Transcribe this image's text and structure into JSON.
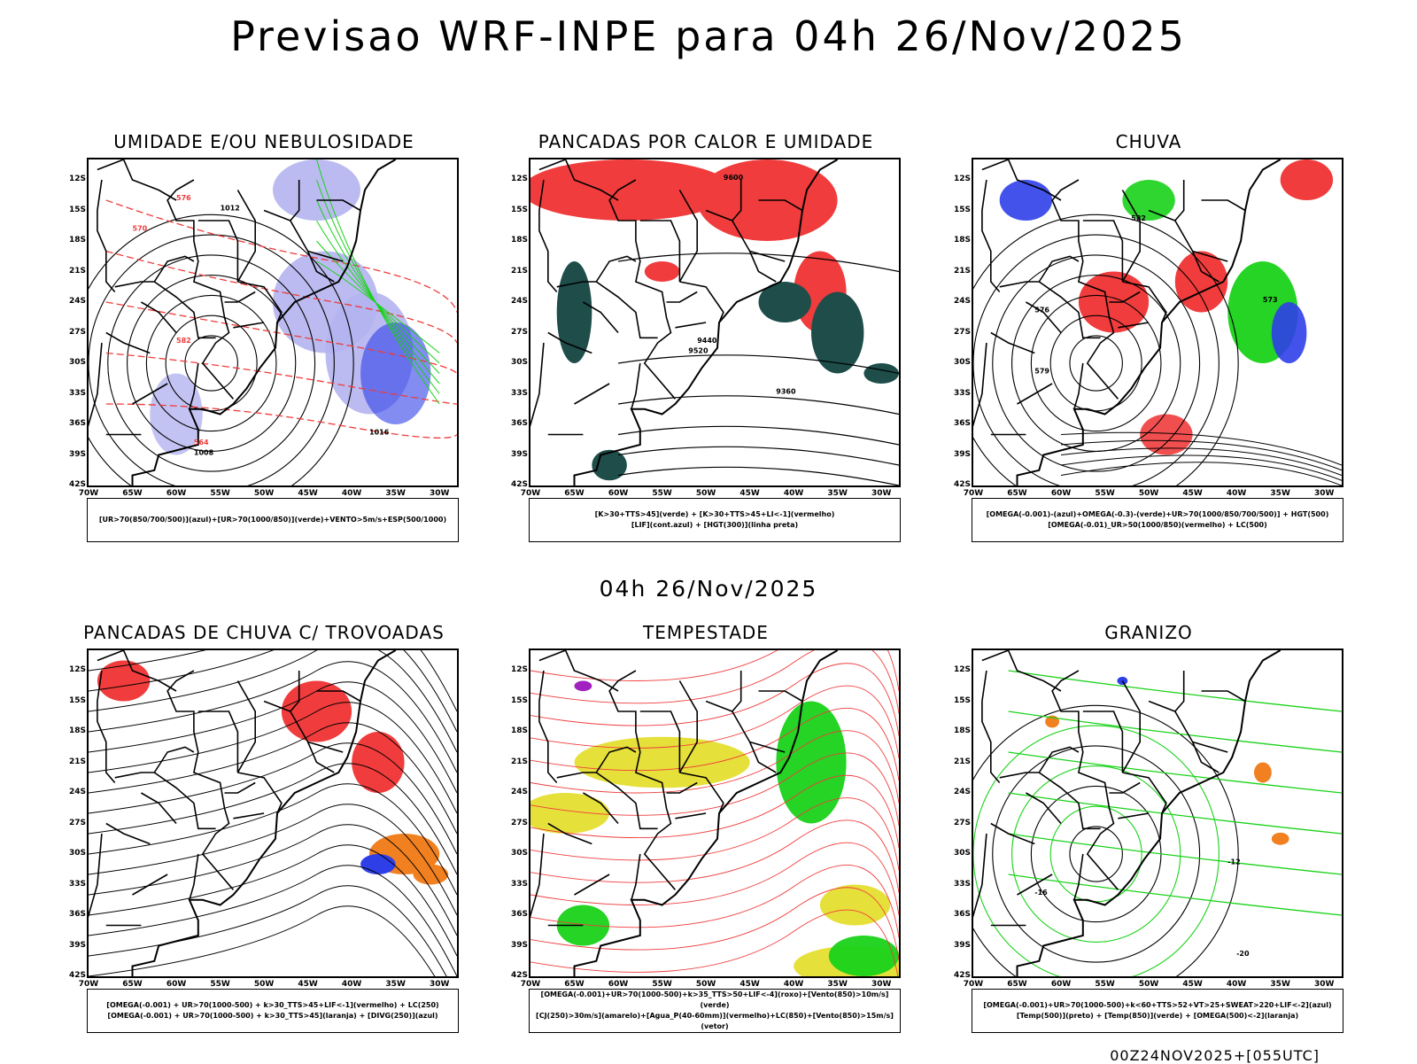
{
  "main_title": "Previsao WRF-INPE  para 04h 26/Nov/2025",
  "mid_title": "04h 26/Nov/2025",
  "footer": "00Z24NOV2025+[055UTC]",
  "lat_labels": [
    "12S",
    "15S",
    "18S",
    "21S",
    "24S",
    "27S",
    "30S",
    "33S",
    "36S",
    "39S",
    "42S"
  ],
  "lon_labels": [
    "70W",
    "65W",
    "60W",
    "55W",
    "50W",
    "45W",
    "40W",
    "35W",
    "30W"
  ],
  "panels": [
    {
      "title": "UMIDADE E/OU NEBULOSIDADE",
      "legend": [
        "[UR>70(850/700/500)](azul)+[UR>70(1000/850)](verde)+VENTO>5m/s+ESP(500/1000)"
      ],
      "contour_labels": [
        "1012",
        "1008",
        "1016",
        "576",
        "570",
        "564",
        "582"
      ]
    },
    {
      "title": "PANCADAS POR CALOR E UMIDADE",
      "legend": [
        "[K>30+TTS>45](verde) + [K>30+TTS>45+LI<-1](vermelho)",
        "[LIF](cont.azul) + [HGT(300)](linha preta)"
      ],
      "contour_labels": [
        "9600",
        "9520",
        "9440",
        "9360"
      ]
    },
    {
      "title": "CHUVA",
      "legend": [
        "[OMEGA(-0.001)-(azul)+OMEGA(-0.3)-(verde)+UR>70(1000/850/700/500)] + HGT(500)",
        "[OMEGA(-0.01)_UR>50(1000/850)(vermelho) + LC(500)"
      ],
      "contour_labels": [
        "582",
        "576",
        "573",
        "579"
      ]
    },
    {
      "title": "PANCADAS DE CHUVA C/ TROVOADAS",
      "legend": [
        "[OMEGA(-0.001) + UR>70(1000-500) + k>30_TTS>45+LIF<-1](vermelho) + LC(250)",
        "[OMEGA(-0.001) + UR>70(1000-500) + k>30_TTS>45](laranja) + [DIVG(250)](azul)"
      ],
      "contour_labels": []
    },
    {
      "title": "TEMPESTADE",
      "legend": [
        "[OMEGA(-0.001)+UR>70(1000-500)+k>35_TTS>50+LIF<-4](roxo)+[Vento(850)>10m/s](verde)",
        "[CJ(250)>30m/s](amarelo)+[Agua_P(40-60mm)](vermelho)+LC(850)+[Vento(850)>15m/s](vetor)"
      ],
      "contour_labels": []
    },
    {
      "title": "GRANIZO",
      "legend": [
        "[OMEGA(-0.001)+UR>70(1000-500)+k<60+TTS>52+VT>25+SWEAT>220+LIF<-2](azul)",
        "[Temp(500)](preto) + [Temp(850)](verde) + [OMEGA(500)<-2](laranja)"
      ],
      "contour_labels": [
        "-12",
        "-16",
        "-20"
      ]
    }
  ],
  "colors": {
    "blue": "#2f3fe8",
    "green": "#19d219",
    "red": "#f03c3c",
    "darkteal": "#1e4d4a",
    "yellow": "#e6e03a",
    "orange": "#f08020",
    "purple": "#a020c0",
    "lightblue": "#b4b4f0"
  }
}
